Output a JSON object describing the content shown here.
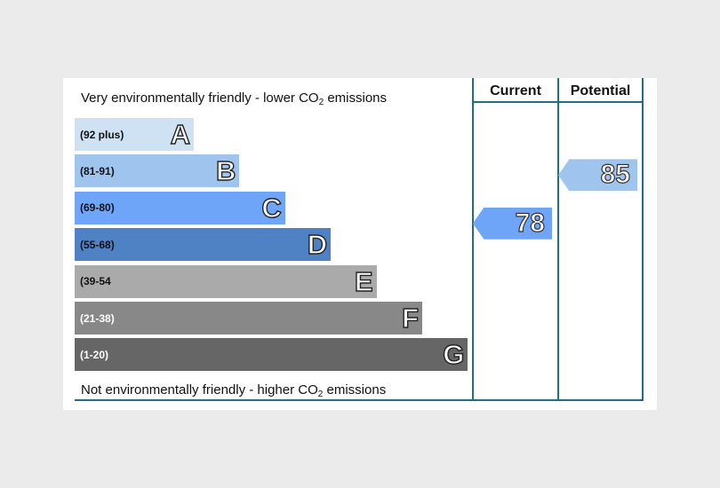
{
  "chart_data": {
    "type": "bar",
    "title": "",
    "top_caption": "Very environmentally friendly - lower CO",
    "bottom_caption": "Not environmentally friendly - higher CO",
    "caption_subscript": "2",
    "caption_suffix": " emissions",
    "columns": [
      "Current",
      "Potential"
    ],
    "bands": [
      {
        "letter": "A",
        "range": "(92 plus)",
        "color": "#cfe2f3",
        "text_color": "#111111"
      },
      {
        "letter": "B",
        "range": "(81-91)",
        "color": "#9fc5ee",
        "text_color": "#111111"
      },
      {
        "letter": "C",
        "range": "(69-80)",
        "color": "#6fa5f8",
        "text_color": "#111111"
      },
      {
        "letter": "D",
        "range": "(55-68)",
        "color": "#4f81c5",
        "text_color": "#111111"
      },
      {
        "letter": "E",
        "range": "(39-54",
        "color": "#aaaaaa",
        "text_color": "#111111"
      },
      {
        "letter": "F",
        "range": "(21-38)",
        "color": "#888888",
        "text_color": "#ffffff"
      },
      {
        "letter": "G",
        "range": "(1-20)",
        "color": "#666666",
        "text_color": "#ffffff"
      }
    ],
    "scores": [
      {
        "column": "Current",
        "value": "78",
        "band": "C",
        "color": "#6fa5f8"
      },
      {
        "column": "Potential",
        "value": "85",
        "band": "B",
        "color": "#9fc5ee"
      }
    ]
  }
}
